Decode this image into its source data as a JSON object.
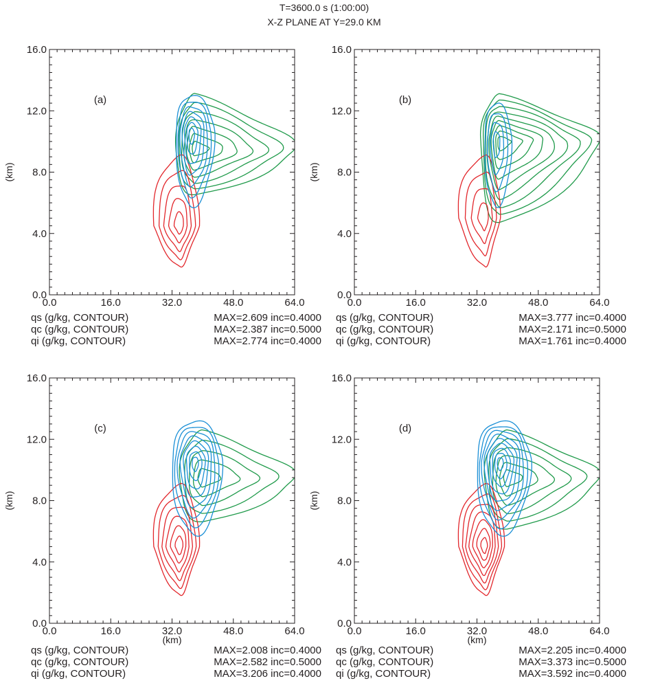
{
  "header": {
    "line1": "T=3600.0 s (1:00:00)",
    "line2": "X-Z PLANE AT Y=29.0 KM"
  },
  "colors": {
    "qs": "#1f9a4a",
    "qc": "#e2262b",
    "qi": "#1a8fd6"
  },
  "chart_data": [
    {
      "type": "contour",
      "panel_label": "(a)",
      "xlabel": "",
      "ylabel": "(km)",
      "xlim": [
        0,
        64
      ],
      "ylim": [
        0,
        16
      ],
      "xticks": [
        "0.0",
        "16.0",
        "32.0",
        "48.0",
        "64.0"
      ],
      "yticks": [
        "0.0",
        "4.0",
        "8.0",
        "12.0",
        "16.0"
      ],
      "series": [
        {
          "name": "qs (g/kg, CONTOUR)",
          "max": "MAX=2.609",
          "inc": "inc=0.4000",
          "color_key": "qs",
          "levels": 7,
          "core": [
            38,
            9.5
          ],
          "spread": [
            14,
            3.0
          ],
          "extent": [
            33,
            64,
            6.4,
            13.0
          ]
        },
        {
          "name": "qc (g/kg, CONTOUR)",
          "max": "MAX=2.387",
          "inc": "inc=0.5000",
          "color_key": "qc",
          "levels": 5,
          "core": [
            34,
            4.5
          ],
          "spread": [
            3.5,
            3.5
          ],
          "extent": [
            27,
            39,
            1.8,
            9.0
          ]
        },
        {
          "name": "qi (g/kg, CONTOUR)",
          "max": "MAX=2.774",
          "inc": "inc=0.4000",
          "color_key": "qi",
          "levels": 7,
          "core": [
            37,
            10.5
          ],
          "spread": [
            5,
            2.6
          ],
          "extent": [
            33,
            43,
            5.8,
            13.0
          ]
        }
      ]
    },
    {
      "type": "contour",
      "panel_label": "(b)",
      "xlabel": "",
      "ylabel": "(km)",
      "xlim": [
        0,
        64
      ],
      "ylim": [
        0,
        16
      ],
      "xticks": [
        "0.0",
        "16.0",
        "32.0",
        "48.0",
        "64.0"
      ],
      "yticks": [
        "0.0",
        "4.0",
        "8.0",
        "12.0",
        "16.0"
      ],
      "series": [
        {
          "name": "qs (g/kg, CONTOUR)",
          "max": "MAX=3.777",
          "inc": "inc=0.4000",
          "color_key": "qs",
          "levels": 9,
          "core": [
            38,
            10
          ],
          "spread": [
            13,
            3.5
          ],
          "extent": [
            33,
            64,
            4.5,
            13.0
          ]
        },
        {
          "name": "qc (g/kg, CONTOUR)",
          "max": "MAX=2.171",
          "inc": "inc=0.5000",
          "color_key": "qc",
          "levels": 4,
          "core": [
            34,
            5
          ],
          "spread": [
            3.5,
            3.5
          ],
          "extent": [
            27,
            38,
            1.8,
            9.0
          ]
        },
        {
          "name": "qi (g/kg, CONTOUR)",
          "max": "MAX=1.761",
          "inc": "inc=0.4000",
          "color_key": "qi",
          "levels": 4,
          "core": [
            37,
            10
          ],
          "spread": [
            4,
            2.5
          ],
          "extent": [
            34,
            41,
            5.8,
            12.5
          ]
        }
      ]
    },
    {
      "type": "contour",
      "panel_label": "(c)",
      "xlabel": "(km)",
      "ylabel": "(km)",
      "xlim": [
        0,
        64
      ],
      "ylim": [
        0,
        16
      ],
      "xticks": [
        "0.0",
        "16.0",
        "32.0",
        "48.0",
        "64.0"
      ],
      "yticks": [
        "0.0",
        "4.0",
        "8.0",
        "12.0",
        "16.0"
      ],
      "series": [
        {
          "name": "qs (g/kg, CONTOUR)",
          "max": "MAX=2.008",
          "inc": "inc=0.4000",
          "color_key": "qs",
          "levels": 5,
          "core": [
            40,
            9.5
          ],
          "spread": [
            12,
            3.0
          ],
          "extent": [
            34,
            64,
            6.5,
            12.5
          ]
        },
        {
          "name": "qc (g/kg, CONTOUR)",
          "max": "MAX=2.582",
          "inc": "inc=0.5000",
          "color_key": "qc",
          "levels": 6,
          "core": [
            34,
            5
          ],
          "spread": [
            3.5,
            3.5
          ],
          "extent": [
            27,
            39,
            1.8,
            9.0
          ]
        },
        {
          "name": "qi (g/kg, CONTOUR)",
          "max": "MAX=3.206",
          "inc": "inc=0.4000",
          "color_key": "qi",
          "levels": 8,
          "core": [
            38,
            10.5
          ],
          "spread": [
            6,
            2.6
          ],
          "extent": [
            32,
            45,
            5.8,
            13.2
          ]
        }
      ]
    },
    {
      "type": "contour",
      "panel_label": "(d)",
      "xlabel": "(km)",
      "ylabel": "(km)",
      "xlim": [
        0,
        64
      ],
      "ylim": [
        0,
        16
      ],
      "xticks": [
        "0.0",
        "16.0",
        "32.0",
        "48.0",
        "64.0"
      ],
      "yticks": [
        "0.0",
        "4.0",
        "8.0",
        "12.0",
        "16.0"
      ],
      "series": [
        {
          "name": "qs (g/kg, CONTOUR)",
          "max": "MAX=2.205",
          "inc": "inc=0.4000",
          "color_key": "qs",
          "levels": 6,
          "core": [
            40,
            9.5
          ],
          "spread": [
            12,
            3.0
          ],
          "extent": [
            34,
            64,
            6.0,
            12.5
          ]
        },
        {
          "name": "qc (g/kg, CONTOUR)",
          "max": "MAX=3.373",
          "inc": "inc=0.5000",
          "color_key": "qc",
          "levels": 7,
          "core": [
            34,
            5
          ],
          "spread": [
            3.5,
            3.5
          ],
          "extent": [
            27,
            39,
            1.8,
            9.0
          ]
        },
        {
          "name": "qi (g/kg, CONTOUR)",
          "max": "MAX=3.592",
          "inc": "inc=0.4000",
          "color_key": "qi",
          "levels": 9,
          "core": [
            38,
            10.5
          ],
          "spread": [
            6,
            2.6
          ],
          "extent": [
            32,
            46,
            5.8,
            13.2
          ]
        }
      ]
    }
  ]
}
